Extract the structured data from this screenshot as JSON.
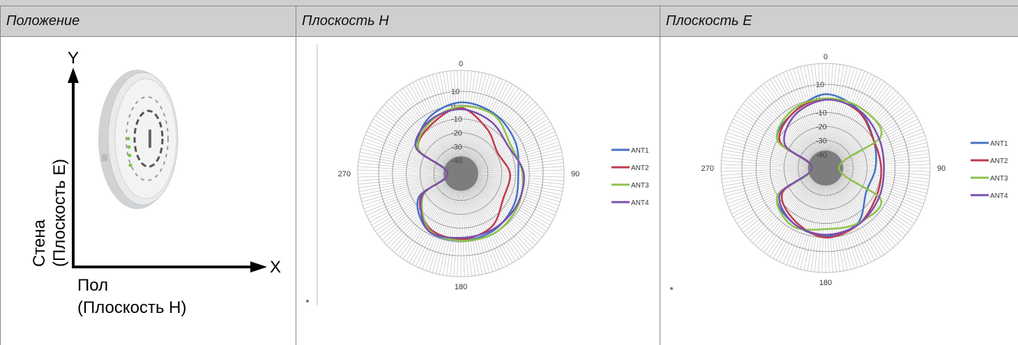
{
  "header": {
    "col1": "Положение",
    "col2": "Плоскость H",
    "col3": "Плоскость E"
  },
  "position": {
    "y_axis": "Y",
    "x_axis": "X",
    "wall_line1": "Стена",
    "wall_line2": "(Плоскость E)",
    "floor_line1": "Пол",
    "floor_line2": "(Плоскость H)"
  },
  "colors": {
    "ANT1": "#4472c4",
    "ANT2": "#c0394b",
    "ANT3": "#8fc249",
    "ANT4": "#7b4fae"
  },
  "chart_data": [
    {
      "type": "polar-line",
      "plane": "H",
      "angle_labels": [
        "0",
        "90",
        "180",
        "270"
      ],
      "radial_ticks": [
        "10",
        "0",
        "-10",
        "-20",
        "-30",
        "-40"
      ],
      "rlim": [
        -40,
        10
      ],
      "legend": [
        "ANT1",
        "ANT2",
        "ANT3",
        "ANT4"
      ],
      "legend_position": "right",
      "angles": [
        0,
        30,
        60,
        90,
        120,
        150,
        180,
        210,
        240,
        270,
        300,
        330
      ],
      "series": [
        {
          "name": "ANT1",
          "values": [
            2,
            0,
            -4,
            -8,
            -5,
            -2,
            -1,
            -2,
            -14,
            -40,
            -14,
            -3
          ]
        },
        {
          "name": "ANT2",
          "values": [
            -2,
            -12,
            -19,
            -14,
            -14,
            -5,
            -2,
            -4,
            -16,
            -40,
            -14,
            -8
          ]
        },
        {
          "name": "ANT3",
          "values": [
            -1,
            -1,
            -8,
            -5,
            -2,
            0,
            -1,
            -3,
            -18,
            -40,
            -14,
            -6
          ]
        },
        {
          "name": "ANT4",
          "values": [
            -3,
            -6,
            -10,
            -4,
            -3,
            -3,
            -3,
            -2,
            -17,
            -40,
            -12,
            -5
          ]
        }
      ]
    },
    {
      "type": "polar-line",
      "plane": "E",
      "angle_labels": [
        "0",
        "90",
        "180",
        "270"
      ],
      "radial_ticks": [
        "10",
        "0",
        "-10",
        "-20",
        "-30",
        "-40"
      ],
      "rlim": [
        -40,
        10
      ],
      "legend": [
        "ANT1",
        "ANT2",
        "ANT3",
        "ANT4"
      ],
      "legend_position": "right",
      "angles": [
        0,
        30,
        60,
        90,
        120,
        150,
        180,
        210,
        240,
        270,
        300,
        330
      ],
      "series": [
        {
          "name": "ANT1",
          "values": [
            3,
            -2,
            -10,
            -14,
            -16,
            -4,
            -1,
            -4,
            -10,
            -40,
            -10,
            -4
          ]
        },
        {
          "name": "ANT2",
          "values": [
            0,
            -3,
            -10,
            -10,
            -8,
            -3,
            0,
            -6,
            -14,
            -40,
            -12,
            -4
          ]
        },
        {
          "name": "ANT3",
          "values": [
            0,
            0,
            -4,
            -40,
            -4,
            -4,
            -6,
            -2,
            -10,
            -40,
            -10,
            -2
          ]
        },
        {
          "name": "ANT4",
          "values": [
            -1,
            -2,
            -6,
            -8,
            -6,
            -3,
            -2,
            -4,
            -12,
            -40,
            -16,
            -6
          ]
        }
      ]
    }
  ]
}
